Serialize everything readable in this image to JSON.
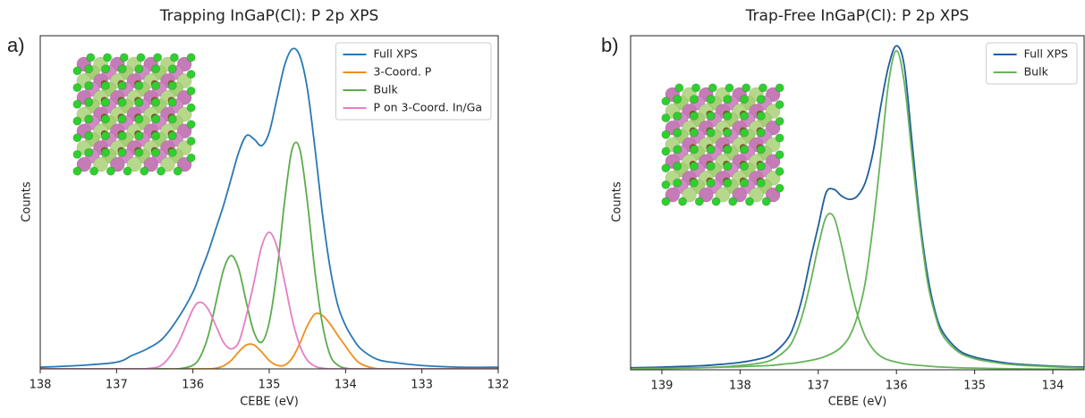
{
  "chart_data": [
    {
      "type": "line",
      "panel_label": "a)",
      "title": "Trapping InGaP(Cl): P 2p XPS",
      "xlabel": "CEBE (eV)",
      "ylabel": "Counts",
      "xlim": [
        138,
        132
      ],
      "ylim": [
        0,
        1
      ],
      "xticks": [
        138,
        137,
        136,
        135,
        134,
        133,
        132
      ],
      "legend": "upper right",
      "grid": false,
      "x": [
        138,
        137.5,
        137,
        136.8,
        136.6,
        136.4,
        136.2,
        136.0,
        135.9,
        135.8,
        135.7,
        135.6,
        135.5,
        135.4,
        135.3,
        135.2,
        135.1,
        135.0,
        134.9,
        134.8,
        134.7,
        134.6,
        134.5,
        134.4,
        134.3,
        134.2,
        134.1,
        134.0,
        133.9,
        133.8,
        133.6,
        133.4,
        133,
        132.5,
        132
      ],
      "series": [
        {
          "name": "Full XPS",
          "color": "#2a78b5",
          "values": [
            0.005,
            0.01,
            0.02,
            0.04,
            0.06,
            0.09,
            0.15,
            0.23,
            0.29,
            0.35,
            0.42,
            0.49,
            0.57,
            0.65,
            0.7,
            0.69,
            0.67,
            0.71,
            0.81,
            0.91,
            0.96,
            0.94,
            0.84,
            0.66,
            0.46,
            0.3,
            0.19,
            0.13,
            0.09,
            0.06,
            0.03,
            0.02,
            0.01,
            0.005,
            0.005
          ]
        },
        {
          "name": "3-Coord. P",
          "color": "#f28e1c",
          "values": [
            0,
            0,
            0,
            0,
            0,
            0,
            0,
            0,
            0,
            0,
            0.002,
            0.009,
            0.025,
            0.051,
            0.072,
            0.072,
            0.051,
            0.025,
            0.011,
            0.011,
            0.032,
            0.076,
            0.13,
            0.165,
            0.16,
            0.134,
            0.1,
            0.068,
            0.037,
            0.015,
            0.001,
            0,
            0,
            0,
            0
          ]
        },
        {
          "name": "Bulk",
          "color": "#5aac4c",
          "values": [
            0,
            0,
            0,
            0,
            0,
            0,
            0,
            0.011,
            0.038,
            0.099,
            0.197,
            0.296,
            0.34,
            0.3,
            0.2,
            0.11,
            0.08,
            0.14,
            0.29,
            0.5,
            0.66,
            0.66,
            0.5,
            0.29,
            0.13,
            0.04,
            0.011,
            0.002,
            0,
            0,
            0,
            0,
            0,
            0,
            0
          ]
        },
        {
          "name": "P on 3-Coord. In/Ga",
          "color": "#e57fc3",
          "values": [
            0,
            0,
            0,
            0,
            0.001,
            0.013,
            0.074,
            0.179,
            0.2,
            0.179,
            0.13,
            0.08,
            0.06,
            0.08,
            0.16,
            0.26,
            0.367,
            0.41,
            0.367,
            0.263,
            0.151,
            0.07,
            0.026,
            0.008,
            0.002,
            0,
            0,
            0,
            0,
            0,
            0,
            0,
            0,
            0,
            0
          ]
        }
      ]
    },
    {
      "type": "line",
      "panel_label": "b)",
      "title": "Trap-Free InGaP(Cl): P 2p XPS",
      "xlabel": "CEBE (eV)",
      "ylabel": "Counts",
      "xlim": [
        139.4,
        133.6
      ],
      "ylim": [
        0,
        1
      ],
      "xticks": [
        139,
        138,
        137,
        136,
        135,
        134
      ],
      "legend": "upper right",
      "grid": false,
      "x": [
        139.4,
        139,
        138.5,
        138.2,
        138.0,
        137.8,
        137.6,
        137.4,
        137.3,
        137.2,
        137.1,
        137.0,
        136.9,
        136.8,
        136.7,
        136.6,
        136.5,
        136.4,
        136.3,
        136.2,
        136.1,
        136.0,
        135.9,
        135.8,
        135.7,
        135.6,
        135.5,
        135.4,
        135.2,
        135.0,
        134.8,
        134.5,
        134.0,
        133.6
      ],
      "series": [
        {
          "name": "Full XPS",
          "color": "#1f5e9e",
          "values": [
            0.006,
            0.008,
            0.012,
            0.017,
            0.022,
            0.03,
            0.045,
            0.09,
            0.14,
            0.22,
            0.33,
            0.43,
            0.53,
            0.54,
            0.52,
            0.51,
            0.52,
            0.56,
            0.65,
            0.79,
            0.91,
            0.97,
            0.91,
            0.68,
            0.45,
            0.28,
            0.17,
            0.11,
            0.058,
            0.038,
            0.028,
            0.018,
            0.011,
            0.008
          ]
        },
        {
          "name": "Bulk",
          "color": "#66b35a",
          "values": [
            0.003,
            0.004,
            0.006,
            0.009,
            0.013,
            0.018,
            0.029,
            0.062,
            0.1,
            0.166,
            0.26,
            0.37,
            0.457,
            0.457,
            0.37,
            0.26,
            0.166,
            0.1,
            0.062,
            0.04,
            0.029,
            0.023,
            0.018,
            0.015,
            0.013,
            0.011,
            0.009,
            0.008,
            0.006,
            0.005,
            0.004,
            0.003,
            0.002,
            0.002
          ]
        },
        {
          "color": "#66b35a",
          "values": [
            0.003,
            0.004,
            0.006,
            0.008,
            0.009,
            0.011,
            0.013,
            0.018,
            0.02,
            0.024,
            0.028,
            0.033,
            0.041,
            0.052,
            0.069,
            0.1,
            0.16,
            0.26,
            0.43,
            0.64,
            0.86,
            0.955,
            0.86,
            0.64,
            0.43,
            0.26,
            0.16,
            0.1,
            0.052,
            0.033,
            0.024,
            0.015,
            0.009,
            0.006
          ]
        }
      ]
    }
  ]
}
